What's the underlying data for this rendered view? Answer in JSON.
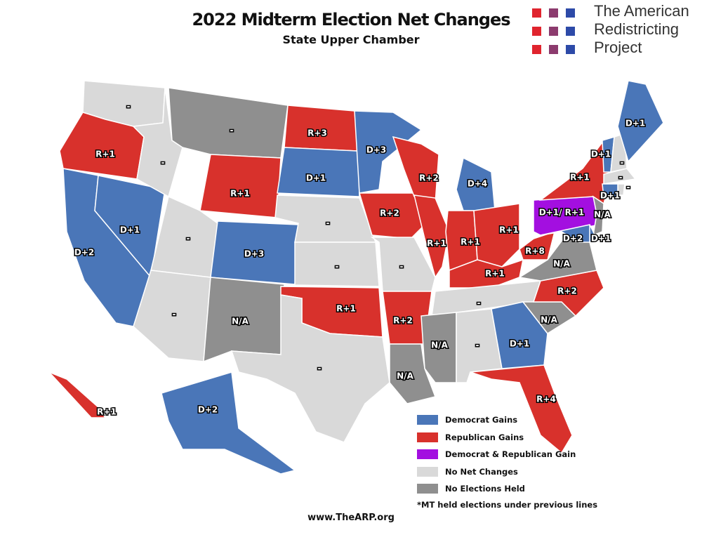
{
  "header": {
    "title": "2022 Midterm Election Net Changes",
    "subtitle": "State Upper Chamber"
  },
  "logo": {
    "lines": [
      "The American",
      "Redistricting",
      "Project"
    ],
    "colors": [
      "#e0242e",
      "#8c3b6e",
      "#2d4aa8"
    ]
  },
  "colors": {
    "dem": "#4a76b8",
    "rep": "#d8312c",
    "both": "#a30fe0",
    "none": "#d9d9d9",
    "na": "#8f8f8f"
  },
  "states": [
    {
      "id": "WA",
      "status": "none",
      "label": "-"
    },
    {
      "id": "OR",
      "status": "rep",
      "label": "R+1"
    },
    {
      "id": "CA",
      "status": "dem",
      "label": "D+2"
    },
    {
      "id": "NV",
      "status": "dem",
      "label": "D+1"
    },
    {
      "id": "ID",
      "status": "none",
      "label": "-"
    },
    {
      "id": "MT",
      "status": "na",
      "label": "-"
    },
    {
      "id": "WY",
      "status": "rep",
      "label": "R+1"
    },
    {
      "id": "UT",
      "status": "none",
      "label": "-"
    },
    {
      "id": "AZ",
      "status": "none",
      "label": "-"
    },
    {
      "id": "CO",
      "status": "dem",
      "label": "D+3"
    },
    {
      "id": "NM",
      "status": "na",
      "label": "N/A"
    },
    {
      "id": "ND",
      "status": "rep",
      "label": "R+3"
    },
    {
      "id": "SD",
      "status": "dem",
      "label": "D+1"
    },
    {
      "id": "NE",
      "status": "none",
      "label": "-"
    },
    {
      "id": "KS",
      "status": "none",
      "label": "-"
    },
    {
      "id": "OK",
      "status": "rep",
      "label": "R+1"
    },
    {
      "id": "TX",
      "status": "none",
      "label": "-"
    },
    {
      "id": "MN",
      "status": "dem",
      "label": "D+3"
    },
    {
      "id": "IA",
      "status": "rep",
      "label": "R+2"
    },
    {
      "id": "MO",
      "status": "none",
      "label": "-"
    },
    {
      "id": "AR",
      "status": "rep",
      "label": "R+2"
    },
    {
      "id": "LA",
      "status": "na",
      "label": "N/A"
    },
    {
      "id": "WI",
      "status": "rep",
      "label": "R+2"
    },
    {
      "id": "IL",
      "status": "rep",
      "label": "R+1"
    },
    {
      "id": "MI",
      "status": "dem",
      "label": "D+4"
    },
    {
      "id": "IN",
      "status": "rep",
      "label": "R+1"
    },
    {
      "id": "OH",
      "status": "rep",
      "label": "R+1"
    },
    {
      "id": "KY",
      "status": "rep",
      "label": "R+1"
    },
    {
      "id": "TN",
      "status": "none",
      "label": "-"
    },
    {
      "id": "MS",
      "status": "na",
      "label": "N/A"
    },
    {
      "id": "AL",
      "status": "none",
      "label": "-"
    },
    {
      "id": "GA",
      "status": "dem",
      "label": "D+1"
    },
    {
      "id": "FL",
      "status": "rep",
      "label": "R+4"
    },
    {
      "id": "SC",
      "status": "na",
      "label": "N/A"
    },
    {
      "id": "NC",
      "status": "rep",
      "label": "R+2"
    },
    {
      "id": "VA",
      "status": "na",
      "label": "N/A"
    },
    {
      "id": "WV",
      "status": "rep",
      "label": "R+8"
    },
    {
      "id": "PA",
      "status": "both",
      "label": "D+1/ R+1"
    },
    {
      "id": "NY",
      "status": "rep",
      "label": "R+1"
    },
    {
      "id": "VT",
      "status": "dem",
      "label": "D+1"
    },
    {
      "id": "NH",
      "status": "none",
      "label": "-"
    },
    {
      "id": "ME",
      "status": "dem",
      "label": "D+1"
    },
    {
      "id": "MA",
      "status": "none",
      "label": "-"
    },
    {
      "id": "RI",
      "status": "none",
      "label": "-"
    },
    {
      "id": "CT",
      "status": "dem",
      "label": "D+1"
    },
    {
      "id": "NJ",
      "status": "na",
      "label": "N/A"
    },
    {
      "id": "MD",
      "status": "dem",
      "label": "D+2"
    },
    {
      "id": "DE",
      "status": "dem",
      "label": "D+1"
    },
    {
      "id": "AK",
      "status": "dem",
      "label": "D+2"
    },
    {
      "id": "HI",
      "status": "rep",
      "label": "R+1"
    }
  ],
  "legend": {
    "items": [
      {
        "status": "dem",
        "label": "Democrat Gains"
      },
      {
        "status": "rep",
        "label": "Republican Gains"
      },
      {
        "status": "both",
        "label": "Democrat & Republican Gain"
      },
      {
        "status": "none",
        "label": "No Net Changes"
      },
      {
        "status": "na",
        "label": "No Elections Held"
      }
    ],
    "note": "*MT held elections under previous lines"
  },
  "footer": {
    "url": "www.TheARP.org"
  }
}
